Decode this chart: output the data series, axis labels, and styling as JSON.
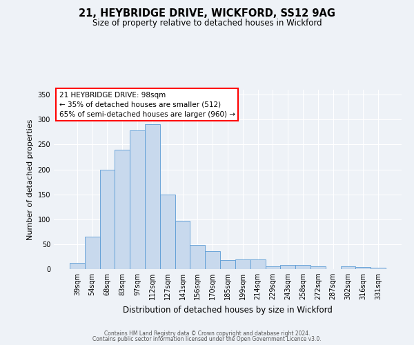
{
  "title": "21, HEYBRIDGE DRIVE, WICKFORD, SS12 9AG",
  "subtitle": "Size of property relative to detached houses in Wickford",
  "xlabel": "Distribution of detached houses by size in Wickford",
  "ylabel": "Number of detached properties",
  "bar_labels": [
    "39sqm",
    "54sqm",
    "68sqm",
    "83sqm",
    "97sqm",
    "112sqm",
    "127sqm",
    "141sqm",
    "156sqm",
    "170sqm",
    "185sqm",
    "199sqm",
    "214sqm",
    "229sqm",
    "243sqm",
    "258sqm",
    "272sqm",
    "287sqm",
    "302sqm",
    "316sqm",
    "331sqm"
  ],
  "bar_values": [
    13,
    65,
    200,
    239,
    278,
    291,
    150,
    97,
    48,
    36,
    18,
    20,
    19,
    5,
    9,
    8,
    5,
    0,
    5,
    4,
    3
  ],
  "bar_color": "#c8d9ed",
  "bar_edge_color": "#5b9bd5",
  "ylim": [
    0,
    360
  ],
  "yticks": [
    0,
    50,
    100,
    150,
    200,
    250,
    300,
    350
  ],
  "property_label": "21 HEYBRIDGE DRIVE: 98sqm",
  "annotation_line1": "← 35% of detached houses are smaller (512)",
  "annotation_line2": "65% of semi-detached houses are larger (960) →",
  "annotation_box_color": "white",
  "annotation_box_edge_color": "red",
  "footer_line1": "Contains HM Land Registry data © Crown copyright and database right 2024.",
  "footer_line2": "Contains public sector information licensed under the Open Government Licence v3.0.",
  "background_color": "#eef2f7",
  "plot_bg_color": "#eef2f7",
  "grid_color": "#ffffff",
  "bar_width": 1.0,
  "title_fontsize": 10.5,
  "subtitle_fontsize": 8.5,
  "ylabel_fontsize": 8,
  "xlabel_fontsize": 8.5,
  "tick_fontsize": 7,
  "footer_fontsize": 5.5,
  "ann_fontsize": 7.5
}
